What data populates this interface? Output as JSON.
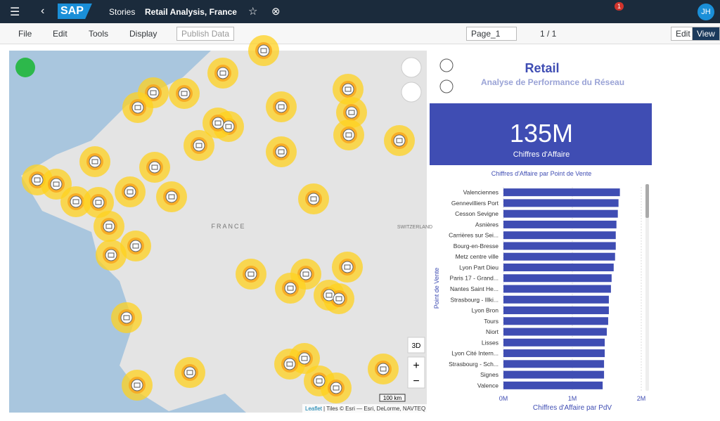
{
  "header": {
    "brand": "SAP",
    "app": "Stories",
    "story": "Retail Analysis, France",
    "notifications": "1",
    "user": "JH"
  },
  "toolbar": {
    "menus": [
      "File",
      "Edit",
      "Tools",
      "Display"
    ],
    "publish": "Publish Data",
    "page": "Page_1",
    "pager": "1 / 1",
    "modes": [
      "Edit",
      "View"
    ]
  },
  "map": {
    "labels": [
      "FRANCE",
      "SWITZERLAND"
    ],
    "scale": "100 km",
    "mode3d": "3D",
    "attribution_link": "Leaflet",
    "attribution": "| Tiles © Esri — Esri, DeLorme, NAVTEQ"
  },
  "story": {
    "title": "Retail",
    "subtitle": "Analyse de Performance du Réseau",
    "kpi": {
      "value": "135M",
      "label": "Chiffres d'Affaire"
    }
  },
  "chart_data": {
    "type": "hbar",
    "title": "Chiffres d'Affaire par Point de Vente",
    "y_label": "Point de Vente",
    "x_label": "Chiffres d'Affaire par PdV",
    "color": "#3f4db3",
    "categories": [
      "Valenciennes",
      "Gennevilliers Port",
      "Cesson Sevigne",
      "Asnières",
      "Carrières sur Sei...",
      "Bourg-en-Bresse",
      "Metz centre ville",
      "Lyon Part Dieu",
      "Paris 17 - Grand...",
      "Nantes Saint He...",
      "Strasbourg - Illki...",
      "Lyon Bron",
      "Tours",
      "Niort",
      "Lisses",
      "Lyon Cité Intern...",
      "Strasbourg - Sch...",
      "Signes",
      "Valence"
    ],
    "values": [
      1.69,
      1.67,
      1.66,
      1.64,
      1.63,
      1.63,
      1.62,
      1.6,
      1.57,
      1.56,
      1.53,
      1.53,
      1.52,
      1.5,
      1.47,
      1.47,
      1.46,
      1.46,
      1.44
    ],
    "xlim": [
      0,
      2
    ],
    "xticks": [
      {
        "value": 0,
        "label": "0M"
      },
      {
        "value": 1,
        "label": "1M"
      },
      {
        "value": 2,
        "label": "2M"
      }
    ],
    "grid": true
  }
}
